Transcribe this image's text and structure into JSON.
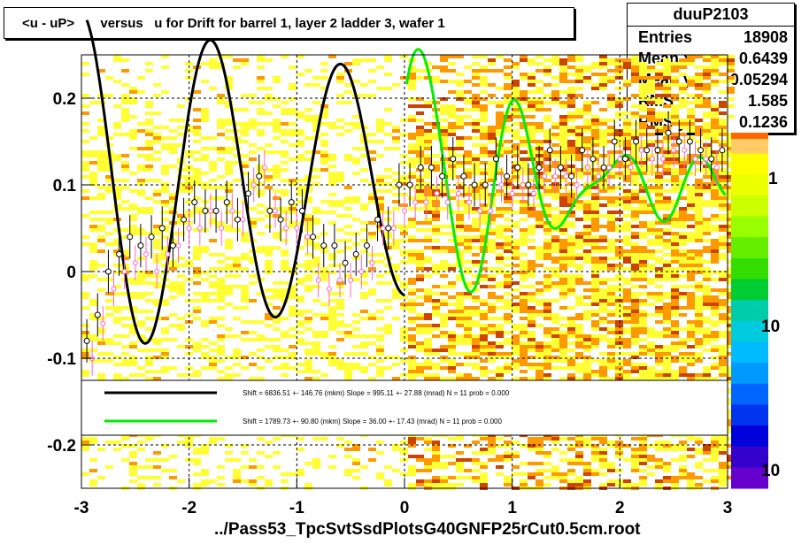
{
  "title": "<u - uP>       versus   u for Drift for barrel 1, layer 2 ladder 3, wafer 1",
  "footer": "../Pass53_TpcSvtSsdPlotsG40GNFP25rCut0.5cm.root",
  "stats": {
    "name": "duuP2103",
    "rows": [
      {
        "label": "Entries",
        "value": "18908"
      },
      {
        "label": "Mean x",
        "value": "0.6439"
      },
      {
        "label": "Mean y",
        "value": "0.05294"
      },
      {
        "label": "RMS x",
        "value": "1.585"
      },
      {
        "label": "RMS y",
        "value": "0.1236"
      }
    ]
  },
  "legend": [
    {
      "color": "#000000",
      "text": "Shift =  6836.51 +- 146.76 (mkm) Slope =   995.11 +- 27.88 (mrad)  N = 11 prob = 0.000"
    },
    {
      "color": "#00ee00",
      "text": "Shift =  1789.73 +- 90.80 (mkm) Slope =    36.00 +- 17.43 (mrad)  N = 11 prob = 0.000"
    }
  ],
  "colorbar_labels": [
    "1",
    "10",
    "10"
  ],
  "chart_data": {
    "type": "heatmap",
    "xlim": [
      -3,
      3
    ],
    "ylim": [
      -0.25,
      0.25
    ],
    "x_ticks": [
      "-3",
      "-2",
      "-1",
      "0",
      "1",
      "2",
      "3"
    ],
    "y_ticks": [
      "-0.2",
      "-0.1",
      "0",
      "0.1",
      "0.2"
    ],
    "grid": true,
    "colors": {
      "low": "#ffff33",
      "mid": "#ff9900",
      "high": "#cc4400",
      "profile_black": "#000000",
      "profile_pink": "#ff66cc",
      "fit_black": "#000000",
      "fit_green": "#00ee00"
    },
    "profile_black": {
      "x": [
        -2.95,
        -2.85,
        -2.75,
        -2.65,
        -2.55,
        -2.45,
        -2.35,
        -2.25,
        -2.15,
        -2.05,
        -1.95,
        -1.85,
        -1.75,
        -1.65,
        -1.55,
        -1.45,
        -1.35,
        -1.25,
        -1.15,
        -1.05,
        -0.95,
        -0.85,
        -0.75,
        -0.65,
        -0.55,
        -0.45,
        -0.35,
        -0.25,
        -0.15,
        -0.05,
        0.05,
        0.15,
        0.25,
        0.35,
        0.45,
        0.55,
        0.65,
        0.75,
        0.85,
        0.95,
        1.05,
        1.15,
        1.25,
        1.35,
        1.45,
        1.55,
        1.65,
        1.75,
        1.85,
        1.95,
        2.05,
        2.15,
        2.25,
        2.35,
        2.45,
        2.55,
        2.65,
        2.75,
        2.85,
        2.95
      ],
      "y": [
        -0.08,
        -0.05,
        0.0,
        0.02,
        0.04,
        0.03,
        0.04,
        0.05,
        0.03,
        0.06,
        0.08,
        0.07,
        0.07,
        0.08,
        0.06,
        0.09,
        0.11,
        0.07,
        0.06,
        0.08,
        0.07,
        0.04,
        0.03,
        0.03,
        0.01,
        0.02,
        0.03,
        0.06,
        0.05,
        0.1,
        0.1,
        0.12,
        0.12,
        0.11,
        0.13,
        0.11,
        0.1,
        0.1,
        0.13,
        0.11,
        0.12,
        0.1,
        0.12,
        0.14,
        0.12,
        0.11,
        0.14,
        0.13,
        0.12,
        0.15,
        0.13,
        0.15,
        0.14,
        0.14,
        0.16,
        0.15,
        0.15,
        0.14,
        0.13,
        0.14
      ],
      "err": 0.025
    },
    "profile_pink": {
      "x": [
        -2.9,
        -2.8,
        -2.7,
        -2.6,
        -2.5,
        -2.4,
        -2.3,
        -2.2,
        -2.1,
        -2.0,
        -1.9,
        -1.8,
        -1.7,
        -1.6,
        -1.5,
        -1.4,
        -1.3,
        -1.2,
        -1.1,
        -1.0,
        -0.9,
        -0.8,
        -0.7,
        -0.6,
        -0.5,
        -0.4,
        -0.3,
        -0.2,
        -0.1,
        0.0,
        0.1,
        0.2,
        0.3,
        0.4,
        0.5,
        0.6,
        0.7,
        0.8,
        0.9,
        1.0,
        1.1,
        1.2,
        1.3,
        1.4,
        1.5,
        1.6,
        1.7,
        1.8,
        1.9,
        2.0,
        2.1,
        2.2,
        2.3,
        2.4,
        2.5,
        2.6,
        2.7,
        2.8,
        2.9
      ],
      "y": [
        -0.1,
        -0.06,
        -0.02,
        0.0,
        0.01,
        0.02,
        0.0,
        0.02,
        0.03,
        0.05,
        0.05,
        0.07,
        0.05,
        0.07,
        0.06,
        0.1,
        0.12,
        0.07,
        0.05,
        0.05,
        0.04,
        -0.01,
        -0.02,
        -0.01,
        -0.01,
        0.0,
        0.01,
        0.05,
        0.05,
        0.07,
        0.08,
        0.08,
        0.09,
        0.08,
        0.09,
        0.08,
        0.07,
        0.07,
        0.1,
        0.09,
        0.1,
        0.09,
        0.11,
        0.11,
        0.11,
        0.1,
        0.12,
        0.11,
        0.12,
        0.13,
        0.12,
        0.14,
        0.13,
        0.13,
        0.14,
        0.14,
        0.13,
        0.13,
        0.12
      ],
      "err": 0.02
    },
    "fit_black": {
      "shift_um": 6836.51,
      "slope_mrad": 995.11
    },
    "fit_green": {
      "shift_um": 1789.73,
      "slope_mrad": 36.0
    }
  }
}
